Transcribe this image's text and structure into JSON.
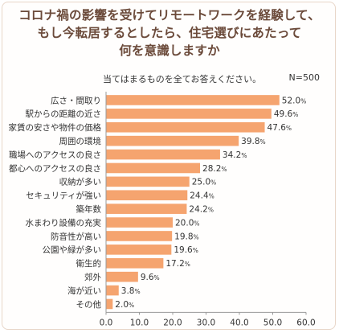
{
  "title_lines": [
    "コロナ禍の影響を受けてリモートワークを経験して、",
    "もし今転居するとしたら、住宅選びにあたって",
    "何を意識しますか"
  ],
  "note": "当てはまるものを全てお答えください。",
  "sample_size": "N=500",
  "colors": {
    "bar": "#f5a46f",
    "title": "#6b4a3a",
    "text": "#333333",
    "axis": "#999999"
  },
  "chart_data": {
    "type": "bar",
    "orientation": "horizontal",
    "title": "コロナ禍の影響を受けてリモートワークを経験して、もし今転居するとしたら、住宅選びにあたって何を意識しますか",
    "categories": [
      "広さ・間取り",
      "駅からの距離の近さ",
      "家賃の安さや物件の価格",
      "周囲の環境",
      "職場へのアクセスの良さ",
      "都心へのアクセスの良さ",
      "収納が多い",
      "セキュリティが強い",
      "築年数",
      "水まわり設備の充実",
      "防音性が高い",
      "公園や緑が多い",
      "衛生的",
      "郊外",
      "海が近い",
      "その他"
    ],
    "values": [
      52.0,
      49.6,
      47.6,
      39.8,
      34.2,
      28.2,
      25.0,
      24.4,
      24.2,
      20.0,
      19.8,
      19.6,
      17.2,
      9.6,
      3.8,
      2.0
    ],
    "value_labels": [
      "52.0",
      "49.6",
      "47.6",
      "39.8",
      "34.2",
      "28.2",
      "25.0",
      "24.4",
      "24.2",
      "20.0",
      "19.8",
      "19.6",
      "17.2",
      "9.6",
      "3.8",
      "2.0"
    ],
    "unit": "%",
    "xlim": [
      0,
      60
    ],
    "xticks": [
      "0.0",
      "10.0",
      "20.0",
      "30.0",
      "40.0",
      "50.0",
      "60.0"
    ],
    "grid": false,
    "legend": "none"
  }
}
